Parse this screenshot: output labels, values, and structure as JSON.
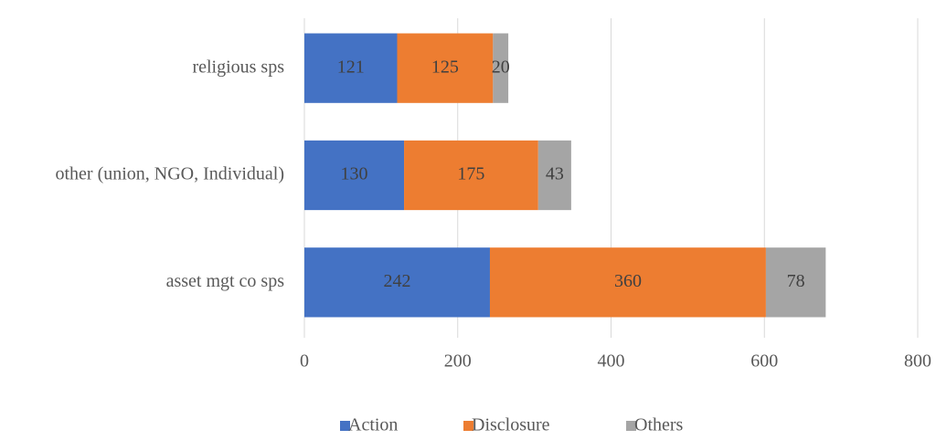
{
  "chart_data": {
    "type": "bar",
    "orientation": "horizontal",
    "stacked": true,
    "categories": [
      "religious sps",
      "other (union, NGO, Individual)",
      "asset mgt co sps"
    ],
    "series": [
      {
        "name": "Action",
        "color": "#4472c4",
        "values": [
          121,
          130,
          242
        ]
      },
      {
        "name": "Disclosure",
        "color": "#ed7d31",
        "values": [
          125,
          175,
          360
        ]
      },
      {
        "name": "Others",
        "color": "#a5a5a5",
        "values": [
          20,
          43,
          78
        ]
      }
    ],
    "xlim": [
      0,
      800
    ],
    "xticks": [
      0,
      200,
      400,
      600,
      800
    ],
    "grid": true,
    "legend": "bottom"
  }
}
